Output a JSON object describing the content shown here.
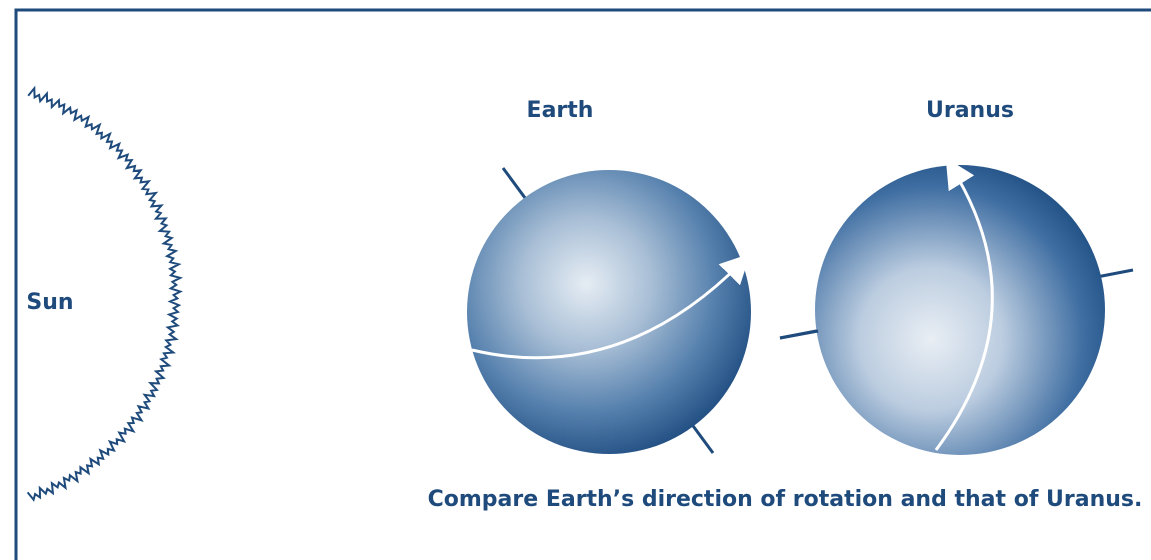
{
  "labels": {
    "earth": "Earth",
    "uranus": "Uranus",
    "sun": "Sun"
  },
  "caption": "Compare Earth’s direction of rotation and that of Uranus."
}
